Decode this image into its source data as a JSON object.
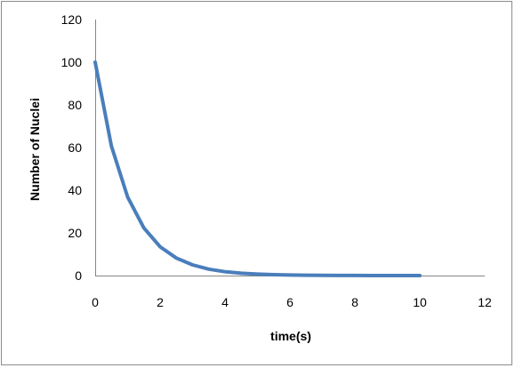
{
  "chart_data": {
    "type": "line",
    "title": "",
    "xlabel": "time(s)",
    "ylabel": "Number of Nuclei",
    "xlim": [
      0,
      12
    ],
    "ylim": [
      0,
      120
    ],
    "x_ticks": [
      0,
      2,
      4,
      6,
      8,
      10,
      12
    ],
    "y_ticks": [
      0,
      20,
      40,
      60,
      80,
      100,
      120
    ],
    "grid": false,
    "legend": "none",
    "series": [
      {
        "color": "#4a7ebb",
        "x": [
          0,
          0.5,
          1,
          1.5,
          2,
          2.5,
          3,
          3.5,
          4,
          4.5,
          5,
          5.5,
          6,
          6.5,
          7,
          7.5,
          8,
          8.5,
          9,
          9.5,
          10
        ],
        "y": [
          100,
          60.7,
          36.8,
          22.3,
          13.5,
          8.2,
          5.0,
          3.0,
          1.8,
          1.1,
          0.7,
          0.4,
          0.25,
          0.15,
          0.09,
          0.06,
          0.03,
          0.02,
          0.01,
          0.01,
          0.0
        ]
      }
    ]
  }
}
